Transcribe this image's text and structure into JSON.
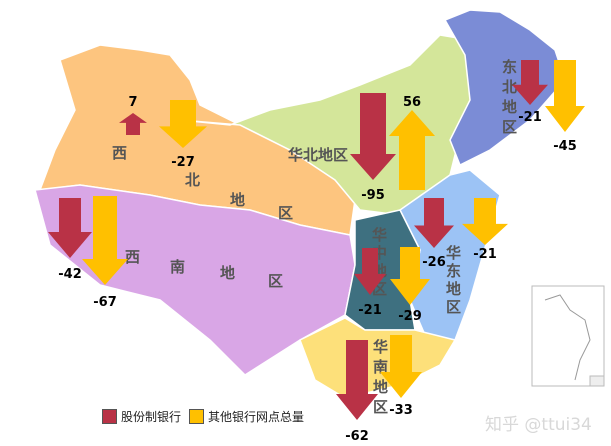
{
  "colors": {
    "joint_stock": "#B93246",
    "other": "#FFC000",
    "northwest": "#FDC57F",
    "southwest": "#D9A6E6",
    "north": "#D4E69A",
    "northeast": "#7B8CD6",
    "central": "#3E7080",
    "east": "#9CC3F5",
    "south": "#FDE07A"
  },
  "regions": {
    "northwest": {
      "chars": [
        "西",
        "北",
        "地",
        "区"
      ]
    },
    "southwest": {
      "chars": [
        "西",
        "南",
        "地",
        "区"
      ]
    },
    "north": {
      "label": "华北地区"
    },
    "northeast": {
      "chars": [
        "东",
        "北",
        "地",
        "区"
      ]
    },
    "central": {
      "chars": [
        "华",
        "中",
        "地",
        "区"
      ]
    },
    "east": {
      "chars": [
        "华",
        "东",
        "地",
        "区"
      ]
    },
    "south": {
      "chars": [
        "华",
        "南",
        "地",
        "区"
      ]
    }
  },
  "values": {
    "northwest": {
      "joint_stock": "7",
      "other": "-27"
    },
    "north": {
      "joint_stock": "-95",
      "other": "56"
    },
    "northeast": {
      "joint_stock": "-21",
      "other": "-45"
    },
    "southwest": {
      "joint_stock": "-42",
      "other": "-67"
    },
    "central": {
      "joint_stock": "-21",
      "other": "-29"
    },
    "east": {
      "joint_stock": "-26",
      "other": "-21"
    },
    "south": {
      "joint_stock": "-62",
      "other": "-33"
    }
  },
  "legend": {
    "joint_stock": "股份制银行",
    "other": "其他银行网点总量"
  },
  "watermark": "知乎 @ttui34"
}
